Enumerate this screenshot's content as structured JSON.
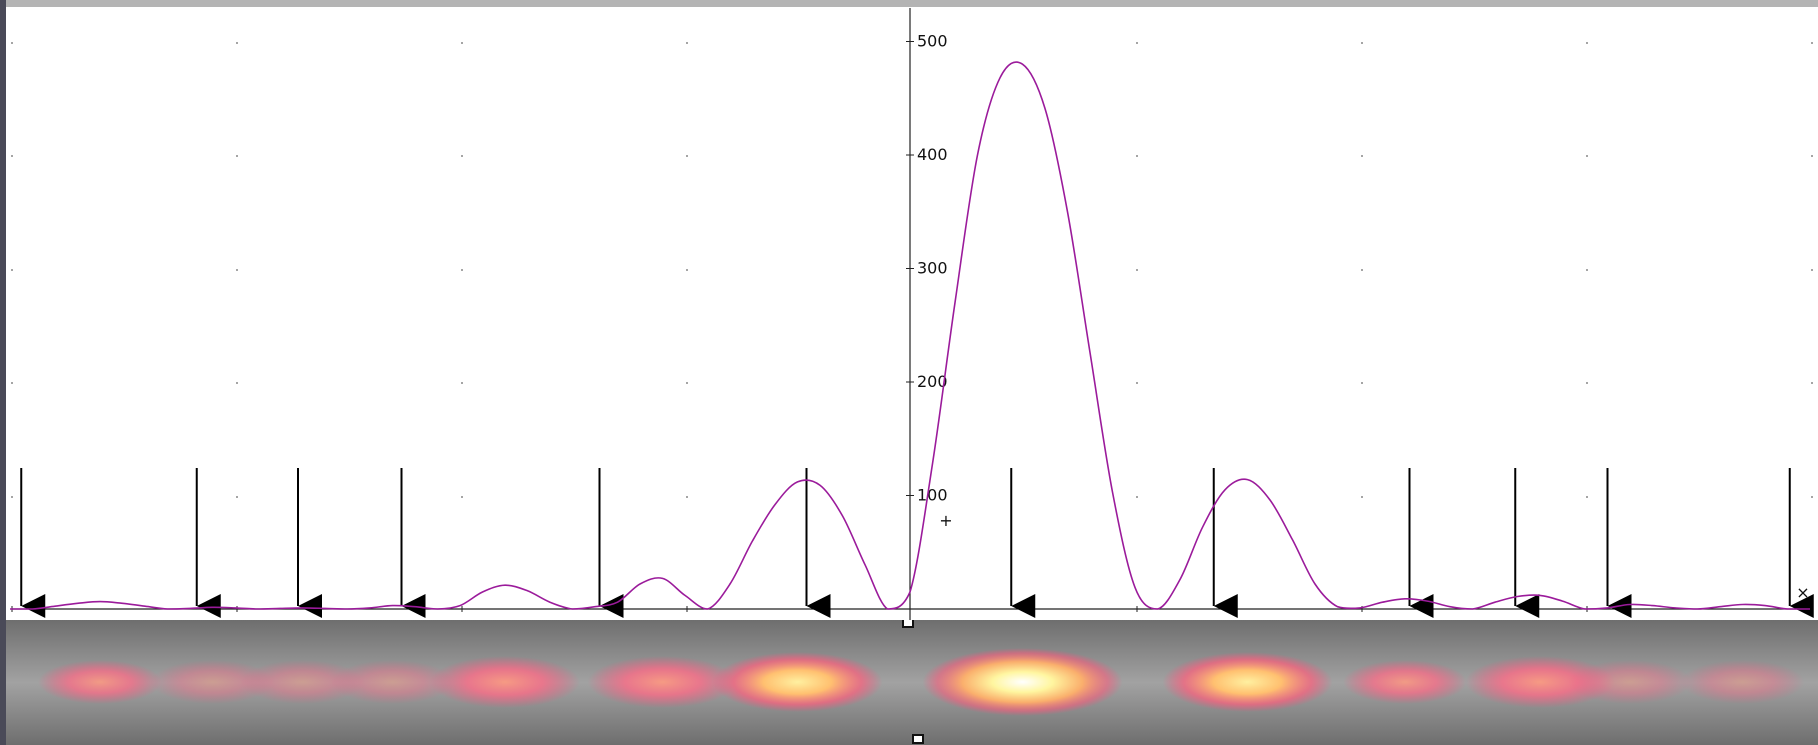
{
  "chart_data": {
    "type": "line",
    "title": "",
    "xlabel": "",
    "ylabel": "",
    "xlim": [
      -0.0041,
      0.0041
    ],
    "ylim": [
      0,
      530
    ],
    "y_ticks": [
      "100",
      "200",
      "300",
      "400",
      "500"
    ],
    "grid": true,
    "series": [
      {
        "color": "#9b1b9b",
        "x": [
          -0.004,
          -0.0039,
          -0.0038,
          -0.0037,
          -0.0036,
          -0.0035,
          -0.0034,
          -0.0033,
          -0.0032,
          -0.0031,
          -0.003,
          -0.0029,
          -0.0028,
          -0.0027,
          -0.0026,
          -0.0025,
          -0.0024,
          -0.0023,
          -0.0022,
          -0.0021,
          -0.002,
          -0.0019,
          -0.0018,
          -0.0017,
          -0.0016,
          -0.0015,
          -0.0014,
          -0.0013,
          -0.0012,
          -0.0011,
          -0.001,
          -0.0009,
          -0.0008,
          -0.0007,
          -0.0006,
          -0.0005,
          -0.0004,
          -0.0003,
          -0.0002,
          -0.0001,
          0.0,
          0.0001,
          0.0002,
          0.0003,
          0.0004,
          0.0005,
          0.0006,
          0.0007,
          0.0008,
          0.0009,
          0.001,
          0.0011,
          0.0012,
          0.0013,
          0.0014,
          0.0015,
          0.0016,
          0.0017,
          0.0018,
          0.0019,
          0.002,
          0.0021,
          0.0022,
          0.0023,
          0.0024,
          0.0025,
          0.0026,
          0.0027,
          0.0028,
          0.0029,
          0.003,
          0.0031,
          0.0032,
          0.0033,
          0.0034,
          0.0035,
          0.0036,
          0.0037,
          0.0038,
          0.0039,
          0.004
        ],
        "y": [
          0,
          0,
          2.5,
          5,
          6.5,
          5,
          2.5,
          0,
          0.5,
          1.5,
          1,
          0,
          0.5,
          1,
          0.5,
          0,
          1,
          3,
          2,
          0,
          3,
          15,
          21,
          16,
          6,
          0,
          2,
          6,
          22,
          27,
          12,
          0,
          22,
          60,
          92,
          112,
          109,
          82,
          39,
          0,
          15,
          128,
          270,
          400,
          468,
          480,
          441,
          350,
          226,
          103,
          19,
          0,
          26,
          72,
          105,
          114,
          96,
          61,
          22,
          2,
          1,
          6,
          9,
          7,
          2,
          0,
          6,
          11,
          12,
          7,
          0,
          1,
          4,
          3,
          1,
          0,
          2,
          4,
          3,
          0,
          0
        ]
      }
    ],
    "arrow_x": [
      -0.00395,
      -0.00317,
      -0.00272,
      -0.00226,
      -0.00138,
      -0.00046,
      0.00045,
      0.00135,
      0.00222,
      0.00269,
      0.0031,
      0.00391
    ]
  }
}
